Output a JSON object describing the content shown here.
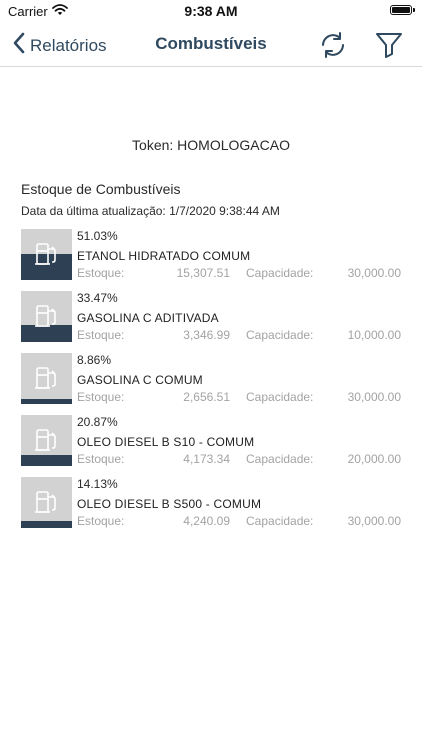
{
  "status_bar": {
    "carrier": "Carrier",
    "time": "9:38 AM",
    "icons": [
      "wifi-icon",
      "battery-icon"
    ]
  },
  "nav": {
    "back_label": "Relatórios",
    "title": "Combustíveis",
    "icons": [
      "chevron-left-icon",
      "refresh-icon",
      "filter-icon"
    ]
  },
  "colors": {
    "accent": "#2f4a60",
    "tank_fill": "#2e4154",
    "tank_bg": "#d2d2d2",
    "muted_text": "#a3a3a3"
  },
  "token": "Token: HOMOLOGACAO",
  "section_title": "Estoque de Combustíveis",
  "last_update": "Data da última atualização: 1/7/2020 9:38:44 AM",
  "labels": {
    "stock": "Estoque:",
    "capacity": "Capacidade:"
  },
  "fuels": [
    {
      "percent_text": "51.03%",
      "level": 0.5103,
      "name": "ETANOL HIDRATADO COMUM",
      "stock": "15,307.51",
      "capacity": "30,000.00"
    },
    {
      "percent_text": "33.47%",
      "level": 0.3347,
      "name": "GASOLINA C ADITIVADA",
      "stock": "3,346.99",
      "capacity": "10,000.00"
    },
    {
      "percent_text": "8.86%",
      "level": 0.0886,
      "name": "GASOLINA C COMUM",
      "stock": "2,656.51",
      "capacity": "30,000.00"
    },
    {
      "percent_text": "20.87%",
      "level": 0.2087,
      "name": "OLEO DIESEL B S10 - COMUM",
      "stock": "4,173.34",
      "capacity": "20,000.00"
    },
    {
      "percent_text": "14.13%",
      "level": 0.1413,
      "name": "OLEO DIESEL B S500 - COMUM",
      "stock": "4,240.09",
      "capacity": "30,000.00"
    }
  ]
}
